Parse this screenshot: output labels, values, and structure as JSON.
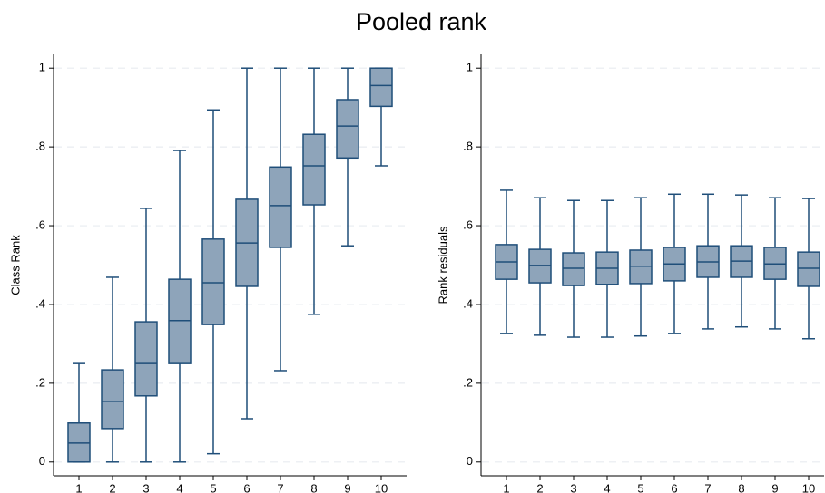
{
  "title": "Pooled rank",
  "chart_data": [
    {
      "type": "box",
      "y_label": "Class Rank",
      "categories": [
        "1",
        "2",
        "3",
        "4",
        "5",
        "6",
        "7",
        "8",
        "9",
        "10"
      ],
      "min": [
        0,
        0,
        0,
        0,
        0.021,
        0.11,
        0.232,
        0.375,
        0.549,
        0.752
      ],
      "q1": [
        0,
        0.085,
        0.168,
        0.25,
        0.349,
        0.446,
        0.545,
        0.653,
        0.772,
        0.903
      ],
      "median": [
        0.048,
        0.154,
        0.25,
        0.359,
        0.455,
        0.556,
        0.651,
        0.752,
        0.853,
        0.956
      ],
      "q3": [
        0.099,
        0.234,
        0.356,
        0.464,
        0.566,
        0.667,
        0.749,
        0.832,
        0.92,
        1
      ],
      "max": [
        0.25,
        0.469,
        0.644,
        0.791,
        0.894,
        1,
        1,
        1,
        1,
        1
      ],
      "color": "#8ea4ba",
      "edge_color": "#1f4e79",
      "ylim": [
        -0.035,
        1.035
      ],
      "yticks": [
        0,
        {
          "value": 0.2,
          "label": ".2"
        },
        {
          "value": 0.4,
          "label": ".4"
        },
        {
          "value": 0.6,
          "label": ".6"
        },
        {
          "value": 0.8,
          "label": ".8"
        },
        1
      ],
      "grid": true
    },
    {
      "type": "box",
      "y_label": "Rank residuals",
      "categories": [
        "1",
        "2",
        "3",
        "4",
        "5",
        "6",
        "7",
        "8",
        "9",
        "10"
      ],
      "min": [
        0.326,
        0.322,
        0.317,
        0.317,
        0.32,
        0.326,
        0.338,
        0.343,
        0.338,
        0.313
      ],
      "q1": [
        0.464,
        0.455,
        0.448,
        0.451,
        0.453,
        0.46,
        0.469,
        0.469,
        0.464,
        0.446
      ],
      "median": [
        0.508,
        0.499,
        0.492,
        0.492,
        0.497,
        0.503,
        0.508,
        0.51,
        0.503,
        0.492
      ],
      "q3": [
        0.552,
        0.54,
        0.531,
        0.533,
        0.538,
        0.545,
        0.549,
        0.549,
        0.545,
        0.533
      ],
      "max": [
        0.69,
        0.671,
        0.664,
        0.664,
        0.671,
        0.68,
        0.68,
        0.678,
        0.671,
        0.669
      ],
      "color": "#8ea4ba",
      "edge_color": "#1f4e79",
      "ylim": [
        -0.035,
        1.035
      ],
      "yticks": [
        0,
        {
          "value": 0.2,
          "label": ".2"
        },
        {
          "value": 0.4,
          "label": ".4"
        },
        {
          "value": 0.6,
          "label": ".6"
        },
        {
          "value": 0.8,
          "label": ".8"
        },
        1
      ],
      "grid": true
    }
  ]
}
